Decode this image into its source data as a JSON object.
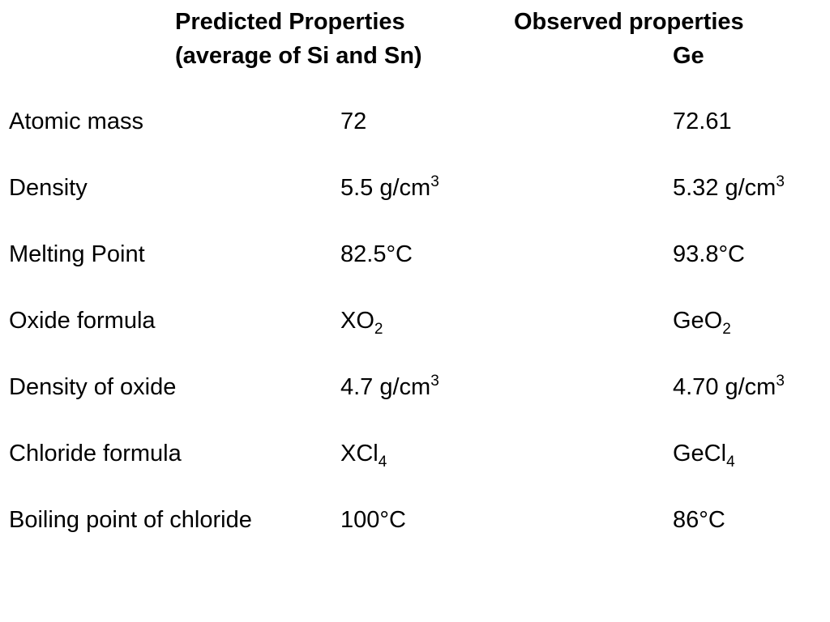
{
  "header": {
    "predicted_line1": "Predicted Properties",
    "predicted_line2": "(average of Si and Sn)",
    "observed_line1": "Observed properties",
    "observed_line2": "Ge"
  },
  "rows": [
    {
      "property": "Atomic mass",
      "predicted": {
        "base": "72",
        "sub": "",
        "sup": ""
      },
      "observed": {
        "base": "72.61",
        "sub": "",
        "sup": ""
      }
    },
    {
      "property": "Density",
      "predicted": {
        "base": "5.5 g/cm",
        "sub": "",
        "sup": "3"
      },
      "observed": {
        "base": "5.32 g/cm",
        "sub": "",
        "sup": "3"
      }
    },
    {
      "property": "Melting Point",
      "predicted": {
        "base": "82.5°C",
        "sub": "",
        "sup": ""
      },
      "observed": {
        "base": "93.8°C",
        "sub": "",
        "sup": ""
      }
    },
    {
      "property": "Oxide formula",
      "predicted": {
        "base": "XO",
        "sub": "2",
        "sup": ""
      },
      "observed": {
        "base": "GeO",
        "sub": "2",
        "sup": ""
      }
    },
    {
      "property": "Density of oxide",
      "predicted": {
        "base": "4.7 g/cm",
        "sub": "",
        "sup": "3"
      },
      "observed": {
        "base": "4.70 g/cm",
        "sub": "",
        "sup": "3"
      }
    },
    {
      "property": "Chloride formula",
      "predicted": {
        "base": "XCl",
        "sub": "4",
        "sup": ""
      },
      "observed": {
        "base": "GeCl",
        "sub": "4",
        "sup": ""
      }
    },
    {
      "property": "Boiling point of chloride",
      "predicted": {
        "base": "100°C",
        "sub": "",
        "sup": ""
      },
      "observed": {
        "base": "86°C",
        "sub": "",
        "sup": ""
      }
    }
  ]
}
